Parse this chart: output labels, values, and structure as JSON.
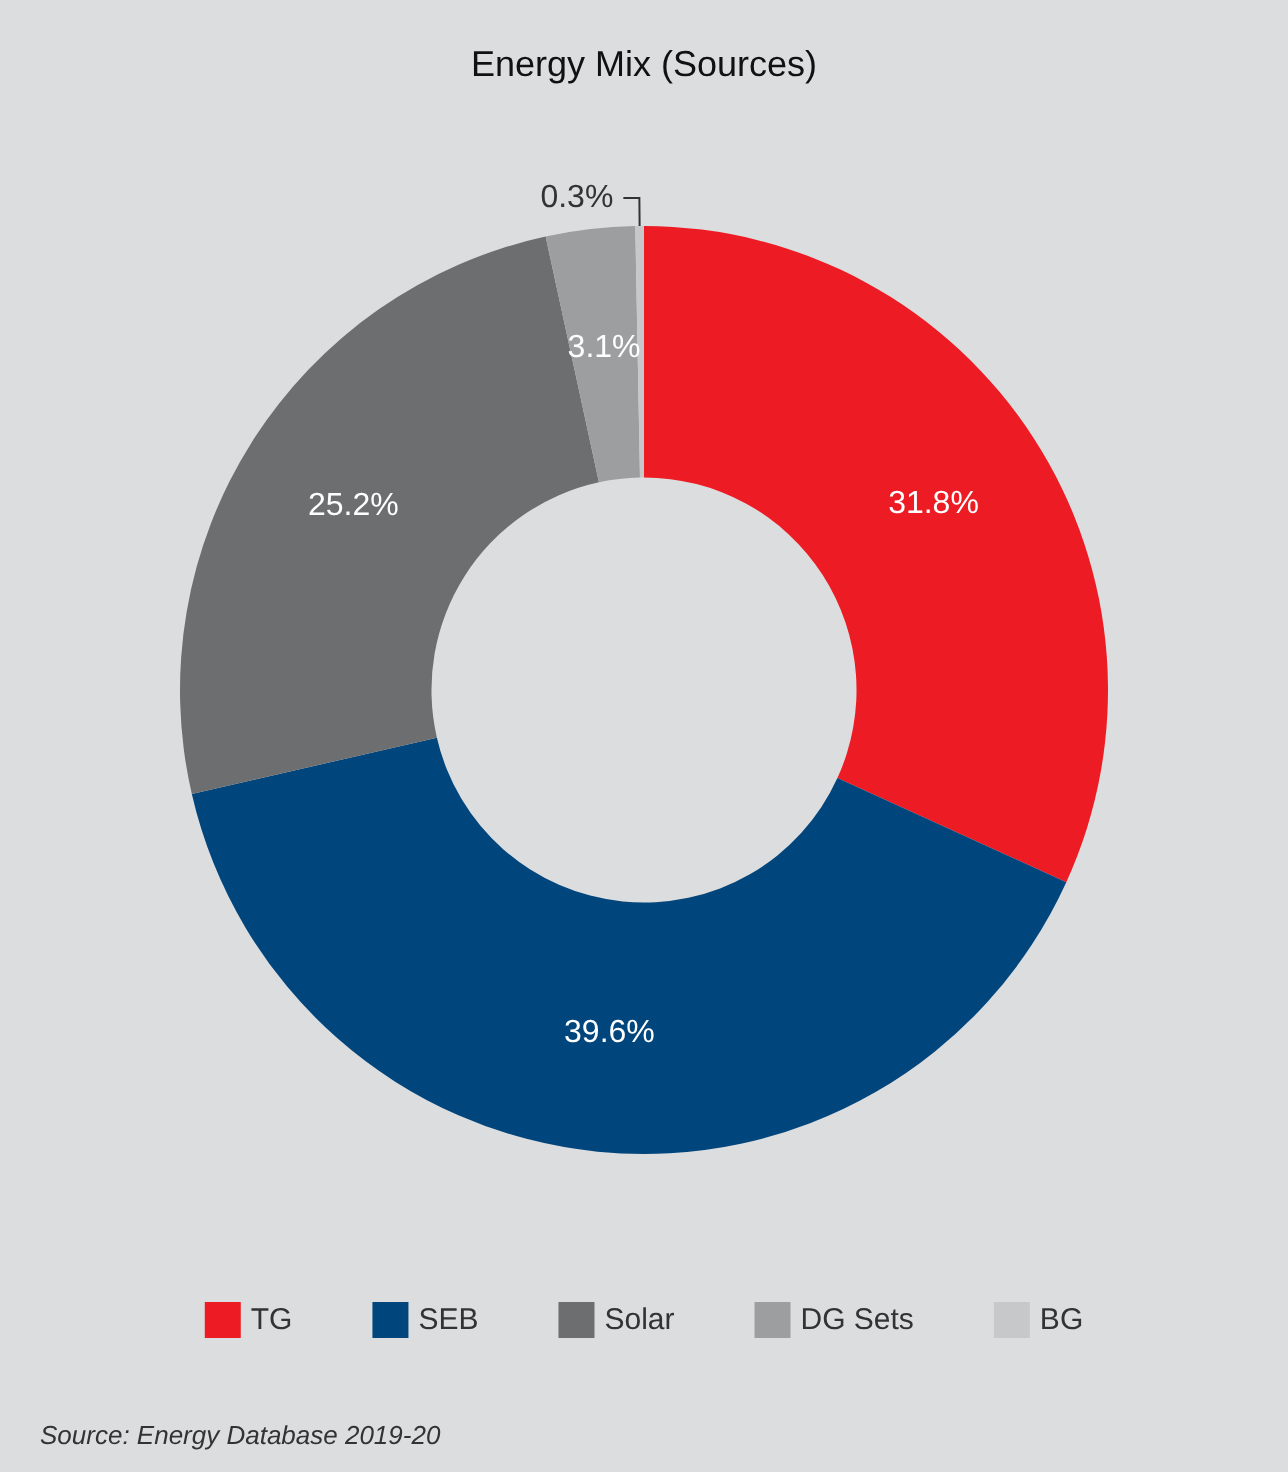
{
  "chart_data": {
    "type": "donut",
    "title": "Energy Mix (Sources)",
    "categories": [
      "TG",
      "SEB",
      "Solar",
      "DG Sets",
      "BG"
    ],
    "values": [
      31.8,
      39.6,
      25.2,
      3.1,
      0.3
    ],
    "value_labels": [
      "31.8%",
      "39.6%",
      "25.2%",
      "3.1%",
      "0.3%"
    ],
    "colors": [
      "#ed1c24",
      "#00457c",
      "#6d6e70",
      "#9d9ea0",
      "#c7c8ca"
    ],
    "legend": "bottom",
    "annotations": [
      "Source: Energy Database 2019-20"
    ]
  }
}
